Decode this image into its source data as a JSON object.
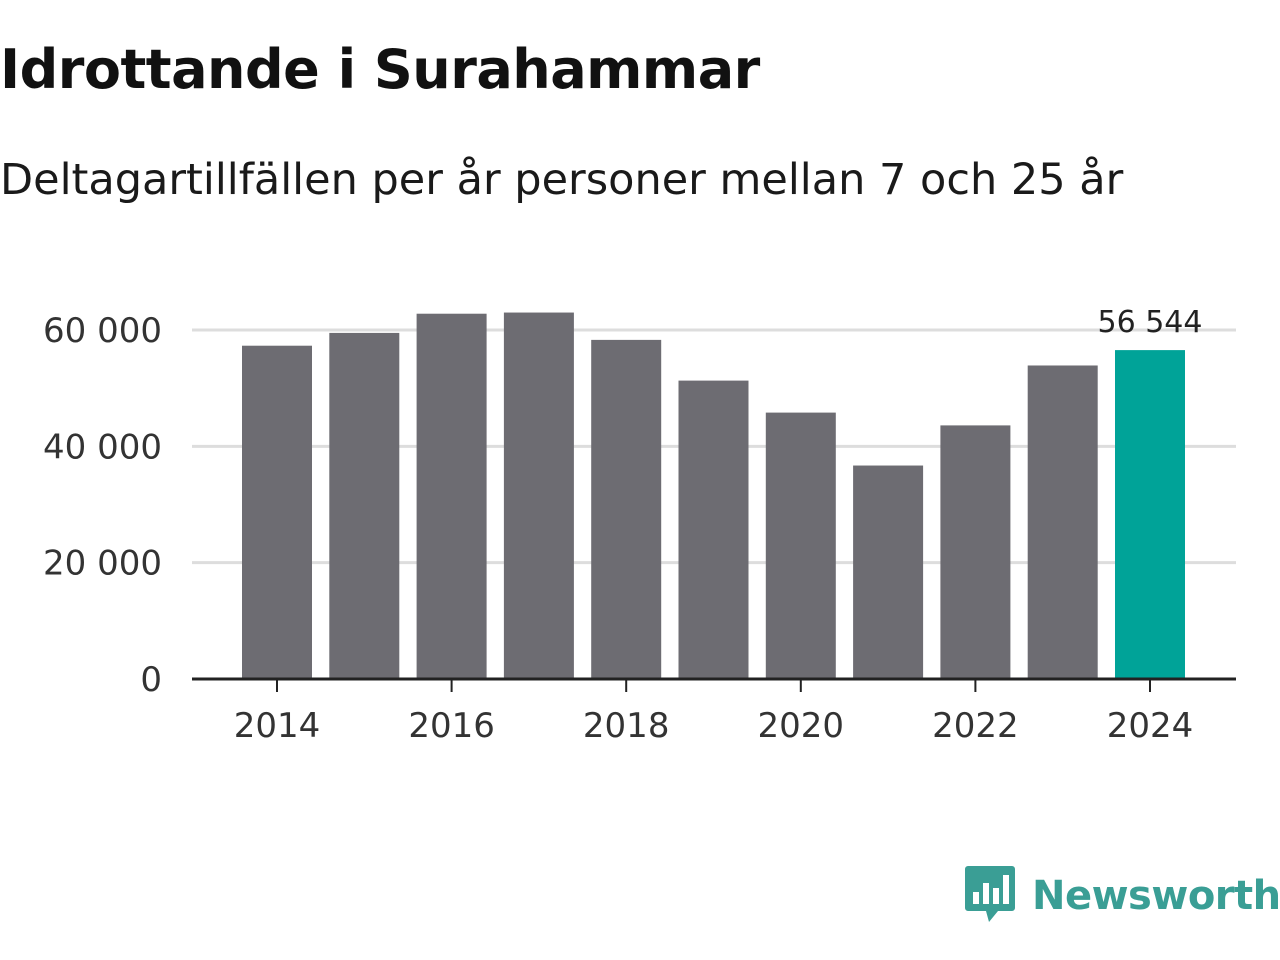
{
  "title": "Idrottande i Surahammar",
  "subtitle": "Deltagartillfällen per år personer mellan 7 och 25 år",
  "brand": {
    "name": "Newsworthy",
    "icon": "bar-chart-speech-bubble-icon",
    "color": "#3a9e95"
  },
  "colors": {
    "bar": "#6d6c72",
    "highlight": "#00a398",
    "grid": "#dddddd",
    "axis": "#222222"
  },
  "chart_data": {
    "type": "bar",
    "title": "Idrottande i Surahammar",
    "subtitle": "Deltagartillfällen per år personer mellan 7 och 25 år",
    "xlabel": "",
    "ylabel": "",
    "categories": [
      2014,
      2015,
      2016,
      2017,
      2018,
      2019,
      2020,
      2021,
      2022,
      2023,
      2024
    ],
    "values": [
      57300,
      59500,
      62800,
      63000,
      58300,
      51300,
      45800,
      36700,
      43600,
      53900,
      56544
    ],
    "highlight_index": 10,
    "value_label": "56 544",
    "ylim": [
      0,
      60000
    ],
    "yticks": [
      0,
      20000,
      40000,
      60000
    ],
    "ytick_labels": [
      "0",
      "20 000",
      "40 000",
      "60 000"
    ],
    "xticks": [
      2014,
      2016,
      2018,
      2020,
      2022,
      2024
    ],
    "xtick_labels": [
      "2014",
      "2016",
      "2018",
      "2020",
      "2022",
      "2024"
    ],
    "grid": true
  }
}
